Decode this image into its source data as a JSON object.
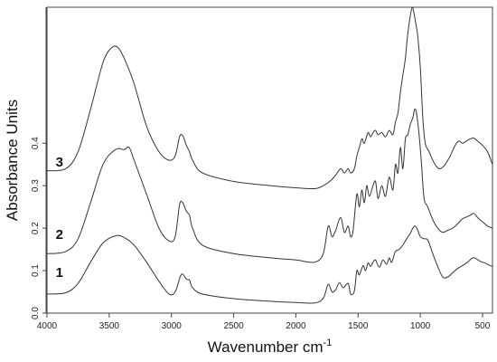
{
  "chart_data": {
    "type": "line",
    "xlabel": "Wavenumber cm",
    "xlabel_superscript": "-1",
    "ylabel": "Absorbance Units",
    "xlim": [
      4000,
      420
    ],
    "ylim": [
      0.0,
      0.72
    ],
    "x_reversed": true,
    "x_ticks": [
      4000,
      3500,
      3000,
      2500,
      2000,
      1500,
      1000,
      500
    ],
    "x_tick_labels": [
      "4000",
      "3500",
      "3000",
      "2500",
      "2000",
      "1500",
      "1000",
      "500"
    ],
    "y_ticks": [
      0.0,
      0.1,
      0.2,
      0.3,
      0.4
    ],
    "y_tick_labels": [
      "0.0",
      "0.1",
      "0.2",
      "0.3",
      "0.4"
    ],
    "grid": false,
    "line_color": "#333333",
    "series": [
      {
        "name": "1",
        "label_at": [
          3900,
          0.085
        ],
        "points": [
          [
            4000,
            0.045
          ],
          [
            3850,
            0.048
          ],
          [
            3750,
            0.07
          ],
          [
            3650,
            0.12
          ],
          [
            3550,
            0.165
          ],
          [
            3450,
            0.182
          ],
          [
            3380,
            0.178
          ],
          [
            3300,
            0.16
          ],
          [
            3200,
            0.12
          ],
          [
            3100,
            0.075
          ],
          [
            3020,
            0.045
          ],
          [
            2970,
            0.05
          ],
          [
            2930,
            0.085
          ],
          [
            2910,
            0.092
          ],
          [
            2880,
            0.08
          ],
          [
            2855,
            0.078
          ],
          [
            2830,
            0.06
          ],
          [
            2750,
            0.045
          ],
          [
            2500,
            0.034
          ],
          [
            2200,
            0.028
          ],
          [
            2000,
            0.025
          ],
          [
            1850,
            0.024
          ],
          [
            1780,
            0.035
          ],
          [
            1740,
            0.068
          ],
          [
            1710,
            0.05
          ],
          [
            1680,
            0.055
          ],
          [
            1650,
            0.072
          ],
          [
            1620,
            0.06
          ],
          [
            1580,
            0.07
          ],
          [
            1560,
            0.045
          ],
          [
            1530,
            0.052
          ],
          [
            1510,
            0.1
          ],
          [
            1490,
            0.09
          ],
          [
            1460,
            0.112
          ],
          [
            1440,
            0.1
          ],
          [
            1420,
            0.118
          ],
          [
            1400,
            0.11
          ],
          [
            1380,
            0.12
          ],
          [
            1360,
            0.125
          ],
          [
            1330,
            0.108
          ],
          [
            1300,
            0.125
          ],
          [
            1270,
            0.115
          ],
          [
            1250,
            0.13
          ],
          [
            1230,
            0.12
          ],
          [
            1200,
            0.145
          ],
          [
            1170,
            0.15
          ],
          [
            1140,
            0.16
          ],
          [
            1110,
            0.175
          ],
          [
            1080,
            0.188
          ],
          [
            1060,
            0.2
          ],
          [
            1040,
            0.205
          ],
          [
            1020,
            0.195
          ],
          [
            1000,
            0.18
          ],
          [
            970,
            0.175
          ],
          [
            940,
            0.172
          ],
          [
            900,
            0.14
          ],
          [
            860,
            0.11
          ],
          [
            820,
            0.085
          ],
          [
            780,
            0.085
          ],
          [
            740,
            0.095
          ],
          [
            700,
            0.105
          ],
          [
            660,
            0.112
          ],
          [
            620,
            0.12
          ],
          [
            580,
            0.13
          ],
          [
            550,
            0.128
          ],
          [
            520,
            0.122
          ],
          [
            480,
            0.118
          ],
          [
            440,
            0.112
          ],
          [
            420,
            0.11
          ]
        ]
      },
      {
        "name": "2",
        "label_at": [
          3900,
          0.175
        ],
        "points": [
          [
            4000,
            0.14
          ],
          [
            3850,
            0.145
          ],
          [
            3750,
            0.175
          ],
          [
            3650,
            0.26
          ],
          [
            3550,
            0.35
          ],
          [
            3450,
            0.385
          ],
          [
            3380,
            0.385
          ],
          [
            3340,
            0.39
          ],
          [
            3300,
            0.36
          ],
          [
            3200,
            0.28
          ],
          [
            3100,
            0.2
          ],
          [
            3020,
            0.17
          ],
          [
            2970,
            0.18
          ],
          [
            2935,
            0.255
          ],
          [
            2910,
            0.26
          ],
          [
            2880,
            0.24
          ],
          [
            2855,
            0.23
          ],
          [
            2830,
            0.2
          ],
          [
            2750,
            0.16
          ],
          [
            2500,
            0.14
          ],
          [
            2200,
            0.13
          ],
          [
            2000,
            0.125
          ],
          [
            1850,
            0.12
          ],
          [
            1780,
            0.14
          ],
          [
            1740,
            0.205
          ],
          [
            1710,
            0.18
          ],
          [
            1680,
            0.195
          ],
          [
            1640,
            0.225
          ],
          [
            1610,
            0.19
          ],
          [
            1580,
            0.205
          ],
          [
            1560,
            0.18
          ],
          [
            1540,
            0.195
          ],
          [
            1510,
            0.28
          ],
          [
            1490,
            0.25
          ],
          [
            1470,
            0.29
          ],
          [
            1450,
            0.26
          ],
          [
            1430,
            0.3
          ],
          [
            1410,
            0.275
          ],
          [
            1380,
            0.3
          ],
          [
            1360,
            0.31
          ],
          [
            1340,
            0.27
          ],
          [
            1310,
            0.3
          ],
          [
            1280,
            0.275
          ],
          [
            1250,
            0.32
          ],
          [
            1220,
            0.29
          ],
          [
            1200,
            0.35
          ],
          [
            1180,
            0.33
          ],
          [
            1160,
            0.39
          ],
          [
            1140,
            0.34
          ],
          [
            1120,
            0.41
          ],
          [
            1100,
            0.42
          ],
          [
            1080,
            0.445
          ],
          [
            1060,
            0.46
          ],
          [
            1045,
            0.48
          ],
          [
            1030,
            0.47
          ],
          [
            1010,
            0.42
          ],
          [
            990,
            0.35
          ],
          [
            970,
            0.27
          ],
          [
            940,
            0.25
          ],
          [
            900,
            0.22
          ],
          [
            860,
            0.2
          ],
          [
            820,
            0.19
          ],
          [
            780,
            0.195
          ],
          [
            740,
            0.2
          ],
          [
            700,
            0.21
          ],
          [
            670,
            0.22
          ],
          [
            640,
            0.225
          ],
          [
            600,
            0.23
          ],
          [
            570,
            0.235
          ],
          [
            540,
            0.225
          ],
          [
            500,
            0.215
          ],
          [
            460,
            0.205
          ],
          [
            420,
            0.2
          ]
        ]
      },
      {
        "name": "3",
        "label_at": [
          3900,
          0.345
        ],
        "points": [
          [
            4000,
            0.335
          ],
          [
            3850,
            0.34
          ],
          [
            3750,
            0.38
          ],
          [
            3650,
            0.48
          ],
          [
            3550,
            0.59
          ],
          [
            3480,
            0.625
          ],
          [
            3430,
            0.625
          ],
          [
            3380,
            0.6
          ],
          [
            3300,
            0.54
          ],
          [
            3200,
            0.44
          ],
          [
            3100,
            0.38
          ],
          [
            3020,
            0.36
          ],
          [
            2970,
            0.37
          ],
          [
            2935,
            0.415
          ],
          [
            2910,
            0.418
          ],
          [
            2880,
            0.395
          ],
          [
            2855,
            0.38
          ],
          [
            2830,
            0.36
          ],
          [
            2750,
            0.33
          ],
          [
            2500,
            0.31
          ],
          [
            2200,
            0.3
          ],
          [
            2000,
            0.295
          ],
          [
            1850,
            0.293
          ],
          [
            1780,
            0.3
          ],
          [
            1720,
            0.312
          ],
          [
            1680,
            0.325
          ],
          [
            1640,
            0.34
          ],
          [
            1610,
            0.33
          ],
          [
            1580,
            0.34
          ],
          [
            1560,
            0.33
          ],
          [
            1530,
            0.34
          ],
          [
            1510,
            0.37
          ],
          [
            1490,
            0.39
          ],
          [
            1470,
            0.41
          ],
          [
            1450,
            0.4
          ],
          [
            1420,
            0.425
          ],
          [
            1400,
            0.415
          ],
          [
            1380,
            0.425
          ],
          [
            1360,
            0.43
          ],
          [
            1340,
            0.42
          ],
          [
            1310,
            0.425
          ],
          [
            1280,
            0.415
          ],
          [
            1250,
            0.43
          ],
          [
            1220,
            0.42
          ],
          [
            1200,
            0.45
          ],
          [
            1180,
            0.47
          ],
          [
            1160,
            0.52
          ],
          [
            1140,
            0.56
          ],
          [
            1120,
            0.6
          ],
          [
            1100,
            0.66
          ],
          [
            1080,
            0.7
          ],
          [
            1065,
            0.72
          ],
          [
            1050,
            0.705
          ],
          [
            1035,
            0.68
          ],
          [
            1020,
            0.65
          ],
          [
            1000,
            0.58
          ],
          [
            980,
            0.46
          ],
          [
            960,
            0.4
          ],
          [
            930,
            0.38
          ],
          [
            900,
            0.36
          ],
          [
            870,
            0.345
          ],
          [
            840,
            0.34
          ],
          [
            800,
            0.35
          ],
          [
            760,
            0.37
          ],
          [
            720,
            0.395
          ],
          [
            690,
            0.405
          ],
          [
            660,
            0.4
          ],
          [
            630,
            0.405
          ],
          [
            600,
            0.41
          ],
          [
            570,
            0.412
          ],
          [
            540,
            0.405
          ],
          [
            500,
            0.395
          ],
          [
            460,
            0.38
          ],
          [
            420,
            0.35
          ]
        ]
      }
    ]
  }
}
